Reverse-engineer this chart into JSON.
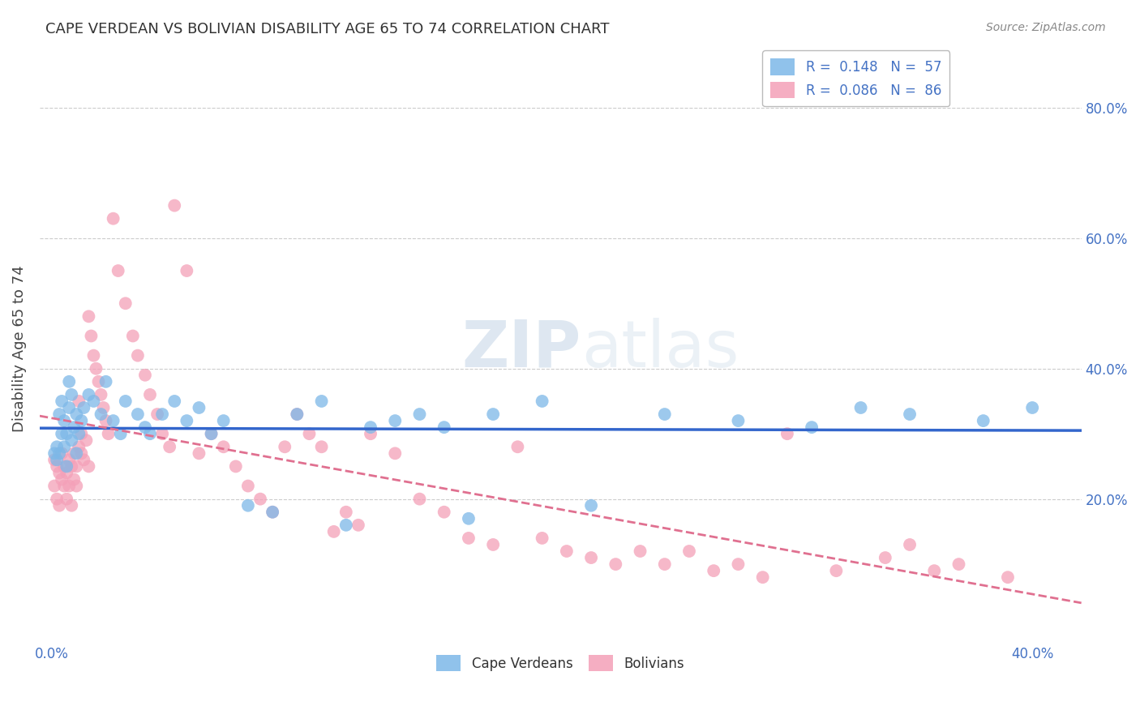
{
  "title": "CAPE VERDEAN VS BOLIVIAN DISABILITY AGE 65 TO 74 CORRELATION CHART",
  "source_text": "Source: ZipAtlas.com",
  "ylabel": "Disability Age 65 to 74",
  "xlim": [
    -0.005,
    0.42
  ],
  "ylim": [
    -0.02,
    0.88
  ],
  "x_ticks": [
    0.0,
    0.4
  ],
  "x_tick_labels": [
    "0.0%",
    "40.0%"
  ],
  "y_ticks": [
    0.2,
    0.4,
    0.6,
    0.8
  ],
  "y_tick_labels": [
    "20.0%",
    "40.0%",
    "60.0%",
    "80.0%"
  ],
  "cape_verdean_R": 0.148,
  "cape_verdean_N": 57,
  "bolivian_R": 0.086,
  "bolivian_N": 86,
  "cape_verdean_color": "#7db8e8",
  "bolivian_color": "#f4a0b8",
  "cape_verdean_line_color": "#3366cc",
  "bolivian_line_color": "#e07090",
  "background_color": "#ffffff",
  "grid_color": "#cccccc",
  "watermark_color": "#c8d8e8",
  "cv_x": [
    0.001,
    0.002,
    0.002,
    0.003,
    0.003,
    0.004,
    0.004,
    0.005,
    0.005,
    0.006,
    0.006,
    0.007,
    0.007,
    0.008,
    0.008,
    0.009,
    0.01,
    0.01,
    0.011,
    0.012,
    0.013,
    0.015,
    0.017,
    0.02,
    0.022,
    0.025,
    0.028,
    0.03,
    0.035,
    0.038,
    0.04,
    0.045,
    0.05,
    0.055,
    0.06,
    0.065,
    0.07,
    0.08,
    0.09,
    0.1,
    0.11,
    0.12,
    0.13,
    0.14,
    0.15,
    0.16,
    0.17,
    0.18,
    0.2,
    0.22,
    0.25,
    0.28,
    0.31,
    0.33,
    0.35,
    0.38,
    0.4
  ],
  "cv_y": [
    0.27,
    0.28,
    0.26,
    0.27,
    0.33,
    0.3,
    0.35,
    0.32,
    0.28,
    0.3,
    0.25,
    0.34,
    0.38,
    0.36,
    0.29,
    0.31,
    0.33,
    0.27,
    0.3,
    0.32,
    0.34,
    0.36,
    0.35,
    0.33,
    0.38,
    0.32,
    0.3,
    0.35,
    0.33,
    0.31,
    0.3,
    0.33,
    0.35,
    0.32,
    0.34,
    0.3,
    0.32,
    0.19,
    0.18,
    0.33,
    0.35,
    0.16,
    0.31,
    0.32,
    0.33,
    0.31,
    0.17,
    0.33,
    0.35,
    0.19,
    0.33,
    0.32,
    0.31,
    0.34,
    0.33,
    0.32,
    0.34
  ],
  "bo_x": [
    0.001,
    0.001,
    0.002,
    0.002,
    0.003,
    0.003,
    0.004,
    0.004,
    0.005,
    0.005,
    0.006,
    0.006,
    0.007,
    0.007,
    0.008,
    0.008,
    0.009,
    0.009,
    0.01,
    0.01,
    0.011,
    0.011,
    0.012,
    0.012,
    0.013,
    0.014,
    0.015,
    0.015,
    0.016,
    0.017,
    0.018,
    0.019,
    0.02,
    0.021,
    0.022,
    0.023,
    0.025,
    0.027,
    0.03,
    0.033,
    0.035,
    0.038,
    0.04,
    0.043,
    0.045,
    0.048,
    0.05,
    0.055,
    0.06,
    0.065,
    0.07,
    0.075,
    0.08,
    0.085,
    0.09,
    0.095,
    0.1,
    0.105,
    0.11,
    0.115,
    0.12,
    0.125,
    0.13,
    0.14,
    0.15,
    0.16,
    0.17,
    0.18,
    0.19,
    0.2,
    0.21,
    0.22,
    0.23,
    0.24,
    0.25,
    0.26,
    0.27,
    0.28,
    0.29,
    0.3,
    0.32,
    0.34,
    0.35,
    0.36,
    0.37,
    0.39
  ],
  "bo_y": [
    0.26,
    0.22,
    0.25,
    0.2,
    0.24,
    0.19,
    0.23,
    0.27,
    0.25,
    0.22,
    0.24,
    0.2,
    0.26,
    0.22,
    0.25,
    0.19,
    0.23,
    0.27,
    0.25,
    0.22,
    0.35,
    0.28,
    0.3,
    0.27,
    0.26,
    0.29,
    0.48,
    0.25,
    0.45,
    0.42,
    0.4,
    0.38,
    0.36,
    0.34,
    0.32,
    0.3,
    0.63,
    0.55,
    0.5,
    0.45,
    0.42,
    0.39,
    0.36,
    0.33,
    0.3,
    0.28,
    0.65,
    0.55,
    0.27,
    0.3,
    0.28,
    0.25,
    0.22,
    0.2,
    0.18,
    0.28,
    0.33,
    0.3,
    0.28,
    0.15,
    0.18,
    0.16,
    0.3,
    0.27,
    0.2,
    0.18,
    0.14,
    0.13,
    0.28,
    0.14,
    0.12,
    0.11,
    0.1,
    0.12,
    0.1,
    0.12,
    0.09,
    0.1,
    0.08,
    0.3,
    0.09,
    0.11,
    0.13,
    0.09,
    0.1,
    0.08
  ]
}
